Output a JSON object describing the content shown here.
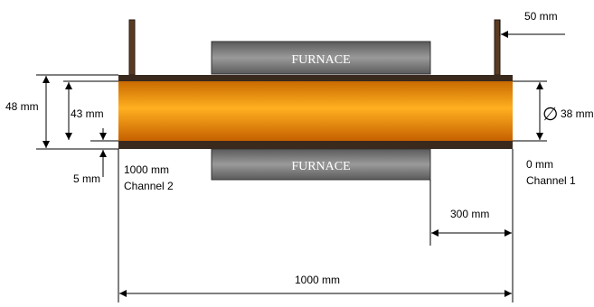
{
  "furnace": {
    "top_label": "FURNACE",
    "bottom_label": "FURNACE"
  },
  "dimensions": {
    "outer_diameter": "48 mm",
    "inner_diameter": "43 mm",
    "wall_thickness": "5 mm",
    "bore_diameter": "38 mm",
    "bore_symbol": "∅",
    "support_width": "50 mm",
    "furnace_offset": "300 mm",
    "total_length": "1000 mm"
  },
  "channels": {
    "left_position": "1000 mm",
    "left_name": "Channel 2",
    "right_position": "0 mm",
    "right_name": "Channel 1"
  },
  "colors": {
    "tube_shell": "#3a2a1e",
    "tube_core": "#f0a020",
    "furnace": "#777777"
  }
}
